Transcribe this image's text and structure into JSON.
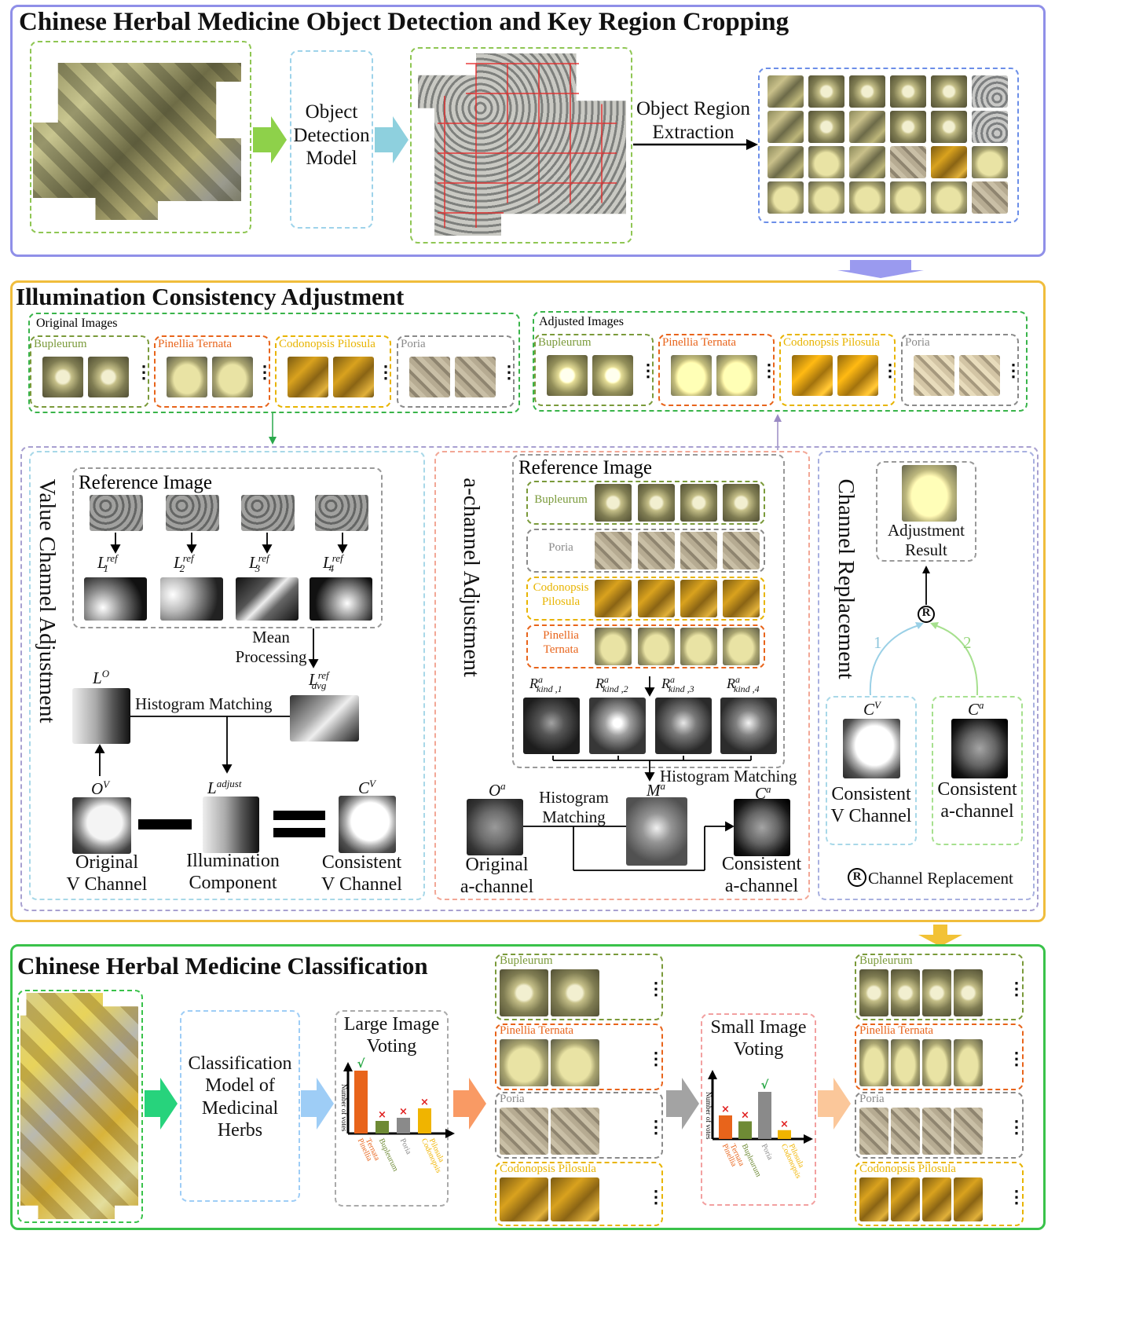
{
  "colors": {
    "panel1": "#8f8fe8",
    "panel2": "#f0bd3c",
    "panel3": "#39c24a",
    "bupleurum": "#7a9a3a",
    "pinellia": "#e8641b",
    "codonopsis": "#e8b400",
    "poria": "#8a8a8a"
  },
  "section1": {
    "title": "Chinese Herbal Medicine Object Detection and Key Region Cropping",
    "detection_model": "Object\nDetection\nModel",
    "extraction": "Object Region\nExtraction"
  },
  "section2": {
    "title": "Illumination Consistency Adjustment",
    "original_images": "Original Images",
    "adjusted_images": "Adjusted Images",
    "herbs": [
      "Bupleurum",
      "Pinellia Ternata",
      "Codonopsis Pilosula",
      "Poria"
    ],
    "value": {
      "title": "Value Channel Adjustment",
      "reference_image": "Reference Image",
      "refs": [
        "L",
        "L",
        "L",
        "L"
      ],
      "ref_sub": [
        "1",
        "2",
        "3",
        "4"
      ],
      "ref_sup": "ref",
      "mean": "Mean\nProcessing",
      "lavg": "L",
      "lavg_sub": "avg",
      "lo": "L",
      "lo_sup": "O",
      "histogram": "Histogram Matching",
      "ov": "O",
      "ov_sup": "V",
      "ladjust": "L",
      "ladjust_sup": "adjust",
      "cv": "C",
      "cv_sup": "V",
      "orig_v": "Original\nV Channel",
      "illum": "Illumination\nComponent",
      "cons_v": "Consistent\nV Channel"
    },
    "achannel": {
      "title": "a-channel Adjustment",
      "reference_image": "Reference Image",
      "kinds": [
        "Bupleurum",
        "Poria",
        "Codonopsis\nPilosula",
        "Pinellia\nTernata"
      ],
      "r": "R",
      "r_sub": [
        "kind ,1",
        "kind ,2",
        "kind ,3",
        "kind ,4"
      ],
      "r_sup": "a",
      "histogram_top": "Histogram Matching",
      "histogram_left": "Histogram\nMatching",
      "oa": "O",
      "oa_sup": "a",
      "ma": "M",
      "ma_sup": "a",
      "ca": "C",
      "ca_sup": "a",
      "orig_a": "Original\na-channel",
      "cons_a": "Consistent\na-channel"
    },
    "replace": {
      "title": "Channel Replacement",
      "result": "Adjustment\nResult",
      "r_symbol": "R",
      "n1": "1",
      "n2": "2",
      "cv": "C",
      "cv_sup": "V",
      "ca": "C",
      "ca_sup": "a",
      "cons_v": "Consistent\nV Channel",
      "cons_a": "Consistent\na-channel",
      "legend": "Channel Replacement"
    }
  },
  "section3": {
    "title": "Chinese Herbal Medicine Classification",
    "model": "Classification\nModel of\nMedicinal\nHerbs",
    "large": "Large Image\nVoting",
    "small": "Small Image\nVoting",
    "votes_axis": "Number of votes",
    "check": "√",
    "cross": "×",
    "large_bars": [
      {
        "label": "Pinellia\nTernata",
        "value": 10,
        "color": "#e8641b"
      },
      {
        "label": "Bupleurum",
        "value": 2,
        "color": "#6e8a35"
      },
      {
        "label": "Poria",
        "value": 2.5,
        "color": "#8a8a8a"
      },
      {
        "label": "Codonopsis\nPilosula",
        "value": 4,
        "color": "#f0b400"
      }
    ],
    "small_bars": [
      {
        "label": "Pinellia\nTernata",
        "value": 4,
        "color": "#e8641b"
      },
      {
        "label": "Bupleurum",
        "value": 3,
        "color": "#6e8a35"
      },
      {
        "label": "Poria",
        "value": 8,
        "color": "#8a8a8a"
      },
      {
        "label": "Codonopsis\nPilosula",
        "value": 1.5,
        "color": "#f0b400"
      }
    ],
    "groups": [
      "Bupleurum",
      "Pinellia Ternata",
      "Poria",
      "Codonopsis Pilosula"
    ]
  }
}
